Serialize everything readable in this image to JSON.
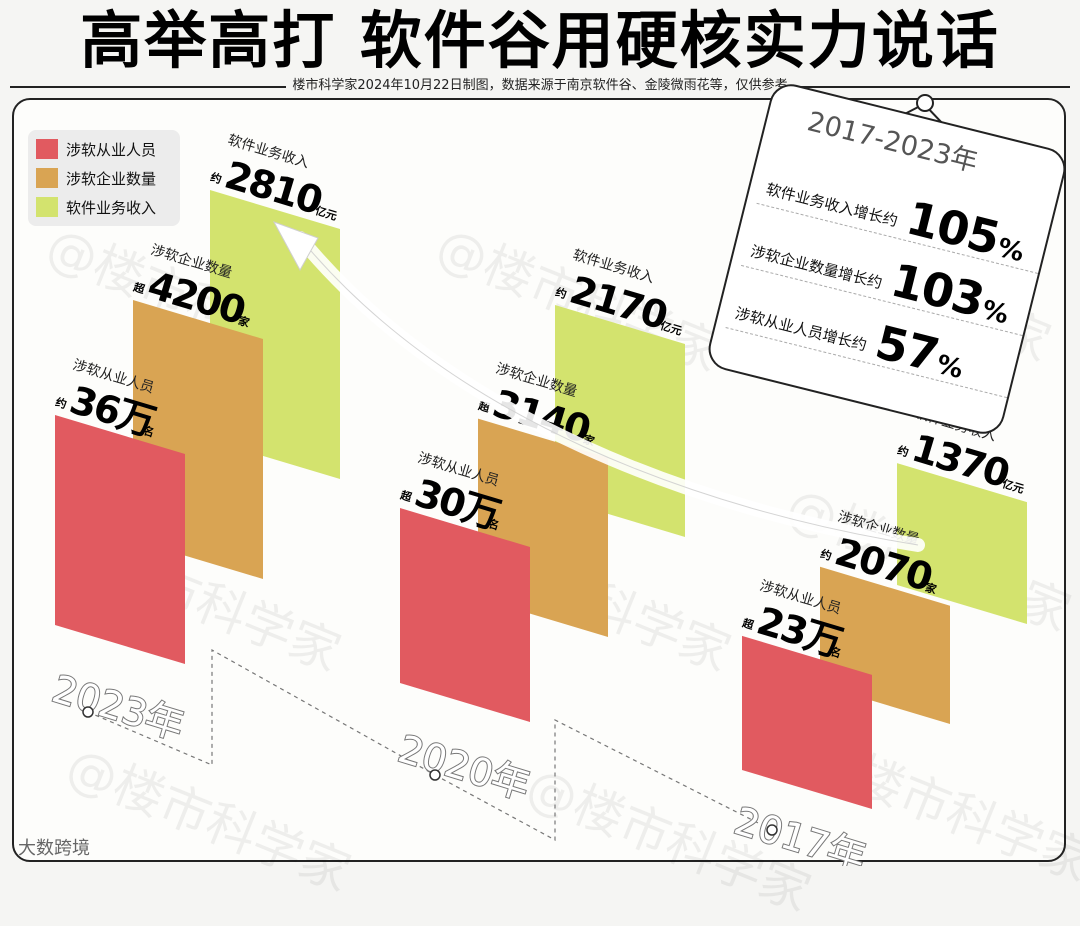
{
  "title": "高举高打 软件谷用硬核实力说话",
  "subtitle": "楼市科学家2024年10月22日制图，数据来源于南京软件谷、金陵微雨花等，仅供参考",
  "legend": [
    {
      "label": "涉软从业人员",
      "color": "#e15a60"
    },
    {
      "label": "涉软企业数量",
      "color": "#d9a453"
    },
    {
      "label": "软件业务收入",
      "color": "#d3e36e"
    }
  ],
  "summary": {
    "title": "2017-2023年",
    "items": [
      {
        "label": "软件业务收入增长约",
        "value": "105",
        "unit": "%"
      },
      {
        "label": "涉软企业数量增长约",
        "value": "103",
        "unit": "%"
      },
      {
        "label": "涉软从业人员增长约",
        "value": "57",
        "unit": "%"
      }
    ]
  },
  "watermark": "@楼市科学家",
  "brand": "大数跨境",
  "chart_data": {
    "type": "bar",
    "title": "高举高打 软件谷用硬核实力说话",
    "categories": [
      "2023年",
      "2020年",
      "2017年"
    ],
    "series": [
      {
        "name": "涉软从业人员",
        "values": [
          36,
          30,
          23
        ],
        "color": "#e15a60",
        "labels": [
          {
            "prefix": "约",
            "number": "36万",
            "unit": "名"
          },
          {
            "prefix": "超",
            "number": "30万",
            "unit": "名"
          },
          {
            "prefix": "超",
            "number": "23万",
            "unit": "名"
          }
        ]
      },
      {
        "name": "涉软企业数量",
        "values": [
          4200,
          3140,
          2070
        ],
        "color": "#d9a453",
        "labels": [
          {
            "prefix": "超",
            "number": "4200",
            "unit": "家"
          },
          {
            "prefix": "超",
            "number": "3140",
            "unit": "家"
          },
          {
            "prefix": "约",
            "number": "2070",
            "unit": "家"
          }
        ]
      },
      {
        "name": "软件业务收入",
        "values": [
          2810,
          2170,
          1370
        ],
        "color": "#d3e36e",
        "labels": [
          {
            "prefix": "约",
            "number": "2810",
            "unit": "亿元"
          },
          {
            "prefix": "约",
            "number": "2170",
            "unit": "亿元"
          },
          {
            "prefix": "约",
            "number": "1370",
            "unit": "亿元"
          }
        ]
      }
    ]
  }
}
